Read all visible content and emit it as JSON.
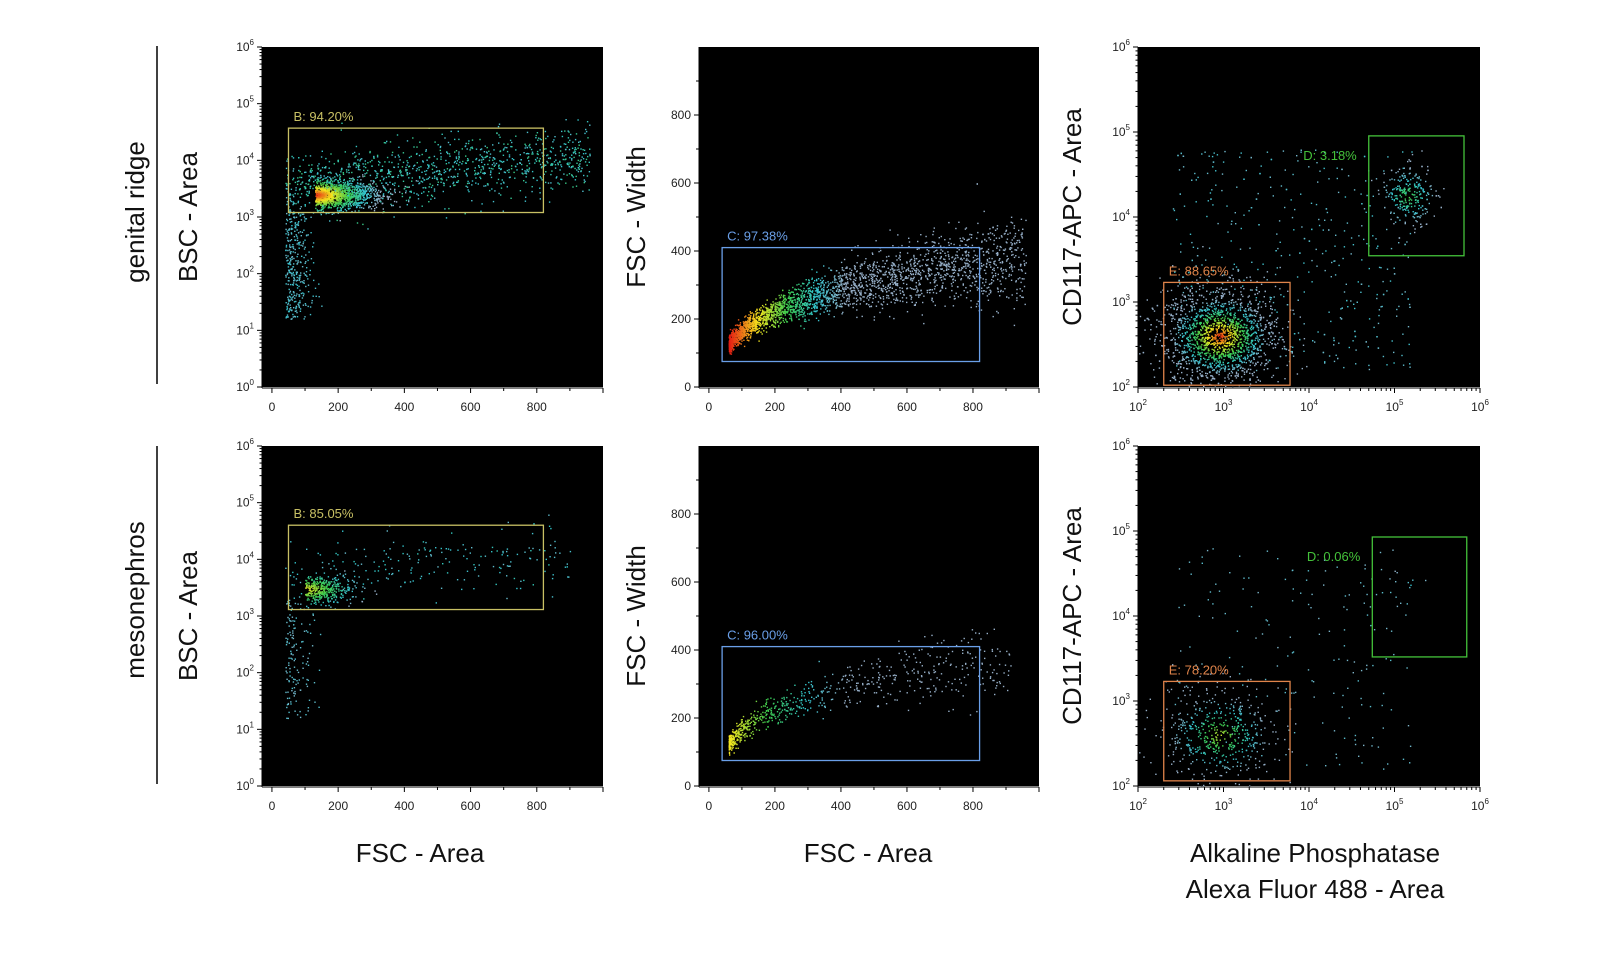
{
  "row_labels": [
    "genital ridge",
    "mesonephros"
  ],
  "column_xlabels": [
    [
      "FSC - Area"
    ],
    [
      "FSC - Area"
    ],
    [
      "Alkaline Phosphatase",
      "Alexa Fluor 488  - Area"
    ]
  ],
  "colors": {
    "background": "#000000",
    "gate_B": "#c8c064",
    "gate_C": "#6a9fe8",
    "gate_D": "#44c23a",
    "gate_E": "#e0844a"
  },
  "chart_data": [
    {
      "type": "scatter",
      "row": "genital ridge",
      "column": 1,
      "xlabel": "FSC - Area",
      "ylabel": "BSC - Area",
      "x_scale": "linear",
      "y_scale": "log",
      "xlim": [
        -30,
        1000
      ],
      "ylim": [
        1,
        1000000
      ],
      "x_ticks": [
        "0",
        "200",
        "400",
        "600",
        "800"
      ],
      "y_ticks": [
        "10^0",
        "10^1",
        "10^2",
        "10^3",
        "10^4",
        "10^5",
        "10^6"
      ],
      "density": "high",
      "cluster": {
        "x": 130,
        "y": 2500
      },
      "gates": [
        {
          "label": "B: 94.20%",
          "x": [
            50,
            820
          ],
          "y": [
            1200,
            37000
          ],
          "color": "#c8c064"
        }
      ]
    },
    {
      "type": "scatter",
      "row": "genital ridge",
      "column": 2,
      "xlabel": "FSC - Area",
      "ylabel": "FSC - Width",
      "x_scale": "linear",
      "y_scale": "linear",
      "xlim": [
        -30,
        1000
      ],
      "ylim": [
        0,
        1000
      ],
      "x_ticks": [
        "0",
        "200",
        "400",
        "600",
        "800"
      ],
      "y_ticks": [
        "0",
        "200",
        "400",
        "600",
        "800"
      ],
      "density": "high",
      "gates": [
        {
          "label": "C: 97.38%",
          "x": [
            40,
            820
          ],
          "y": [
            75,
            410
          ],
          "color": "#6a9fe8"
        }
      ]
    },
    {
      "type": "scatter",
      "row": "genital ridge",
      "column": 3,
      "xlabel": "Alkaline Phosphatase Alexa Fluor 488  - Area",
      "ylabel": "CD117-APC - Area",
      "x_scale": "log",
      "y_scale": "log",
      "xlim": [
        100,
        1000000
      ],
      "ylim": [
        100,
        1000000
      ],
      "x_ticks": [
        "10^2",
        "10^3",
        "10^4",
        "10^5",
        "10^6"
      ],
      "y_ticks": [
        "10^2",
        "10^3",
        "10^4",
        "10^5",
        "10^6"
      ],
      "density": "high",
      "gates": [
        {
          "label": "D: 3.18%",
          "x": [
            50000,
            650000
          ],
          "y": [
            3500,
            90000
          ],
          "color": "#44c23a"
        },
        {
          "label": "E: 88.65%",
          "x": [
            200,
            6000
          ],
          "y": [
            105,
            1700
          ],
          "color": "#e0844a"
        }
      ]
    },
    {
      "type": "scatter",
      "row": "mesonephros",
      "column": 1,
      "xlabel": "FSC - Area",
      "ylabel": "BSC - Area",
      "x_scale": "linear",
      "y_scale": "log",
      "xlim": [
        -30,
        1000
      ],
      "ylim": [
        1,
        1000000
      ],
      "x_ticks": [
        "0",
        "200",
        "400",
        "600",
        "800"
      ],
      "y_ticks": [
        "10^0",
        "10^1",
        "10^2",
        "10^3",
        "10^4",
        "10^5",
        "10^6"
      ],
      "density": "low",
      "cluster": {
        "x": 100,
        "y": 3000
      },
      "gates": [
        {
          "label": "B: 85.05%",
          "x": [
            50,
            820
          ],
          "y": [
            1300,
            40000
          ],
          "color": "#c8c064"
        }
      ]
    },
    {
      "type": "scatter",
      "row": "mesonephros",
      "column": 2,
      "xlabel": "FSC - Area",
      "ylabel": "FSC - Width",
      "x_scale": "linear",
      "y_scale": "linear",
      "xlim": [
        -30,
        1000
      ],
      "ylim": [
        0,
        1000
      ],
      "x_ticks": [
        "0",
        "200",
        "400",
        "600",
        "800"
      ],
      "y_ticks": [
        "0",
        "200",
        "400",
        "600",
        "800"
      ],
      "density": "low",
      "gates": [
        {
          "label": "C: 96.00%",
          "x": [
            40,
            820
          ],
          "y": [
            75,
            410
          ],
          "color": "#6a9fe8"
        }
      ]
    },
    {
      "type": "scatter",
      "row": "mesonephros",
      "column": 3,
      "xlabel": "Alkaline Phosphatase Alexa Fluor 488  - Area",
      "ylabel": "CD117-APC - Area",
      "x_scale": "log",
      "y_scale": "log",
      "xlim": [
        100,
        1000000
      ],
      "ylim": [
        100,
        1000000
      ],
      "x_ticks": [
        "10^2",
        "10^3",
        "10^4",
        "10^5",
        "10^6"
      ],
      "y_ticks": [
        "10^2",
        "10^3",
        "10^4",
        "10^5",
        "10^6"
      ],
      "density": "low",
      "gates": [
        {
          "label": "D: 0.06%",
          "x": [
            55000,
            700000
          ],
          "y": [
            3300,
            85000
          ],
          "color": "#44c23a"
        },
        {
          "label": "E: 78.20%",
          "x": [
            200,
            6000
          ],
          "y": [
            115,
            1700
          ],
          "color": "#e0844a"
        }
      ]
    }
  ]
}
